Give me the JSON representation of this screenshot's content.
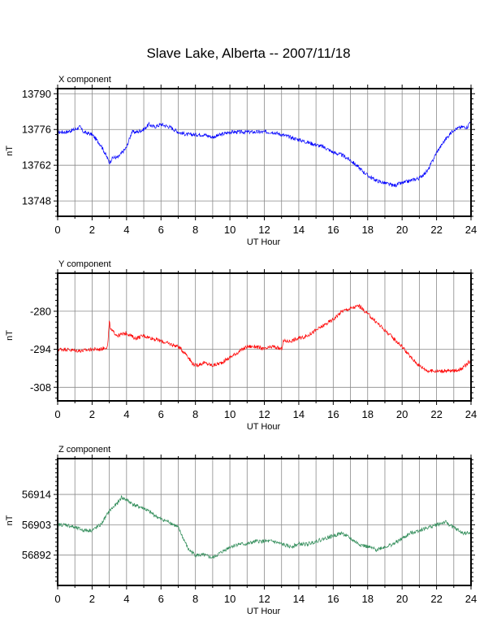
{
  "page": {
    "title": "Slave Lake, Alberta -- 2007/11/18"
  },
  "chart_data": [
    {
      "type": "line",
      "title": "X component",
      "xlabel": "UT Hour",
      "ylabel": "nT",
      "color": "#0000ff",
      "grid": true,
      "xlim": [
        0,
        24
      ],
      "ylim": [
        13742,
        13792
      ],
      "xticks": [
        0,
        2,
        4,
        6,
        8,
        10,
        12,
        14,
        16,
        18,
        20,
        22,
        24
      ],
      "yticks": [
        13748,
        13762,
        13776,
        13790
      ],
      "x": [
        0,
        0.5,
        1,
        1.3,
        1.5,
        2,
        2.5,
        2.8,
        3,
        3.2,
        3.5,
        4,
        4.3,
        4.6,
        5,
        5.3,
        5.6,
        6,
        6.5,
        7,
        7.5,
        8,
        8.5,
        9,
        9.5,
        10,
        10.5,
        11,
        11.5,
        12,
        12.5,
        13,
        13.5,
        14,
        14.5,
        15,
        15.5,
        16,
        16.5,
        17,
        17.5,
        18,
        18.5,
        19,
        19.5,
        20,
        20.5,
        21,
        21.5,
        22,
        22.5,
        23,
        23.5,
        23.8,
        24
      ],
      "y": [
        13775,
        13775,
        13776,
        13777,
        13775,
        13774,
        13770,
        13766,
        13763,
        13765,
        13765,
        13769,
        13775,
        13775,
        13776,
        13778,
        13777,
        13778,
        13777,
        13775,
        13774,
        13774,
        13774,
        13773,
        13774,
        13775,
        13775,
        13775,
        13775,
        13775,
        13775,
        13774,
        13773,
        13772,
        13771,
        13770,
        13769,
        13767,
        13766,
        13764,
        13761,
        13758,
        13756,
        13755,
        13754,
        13755,
        13756,
        13757,
        13760,
        13767,
        13772,
        13776,
        13777,
        13777,
        13780
      ]
    },
    {
      "type": "line",
      "title": "Y component",
      "xlabel": "UT Hour",
      "ylabel": "nT",
      "color": "#ff0000",
      "grid": true,
      "xlim": [
        0,
        24
      ],
      "ylim": [
        -313,
        -266
      ],
      "xticks": [
        0,
        2,
        4,
        6,
        8,
        10,
        12,
        14,
        16,
        18,
        20,
        22,
        24
      ],
      "yticks": [
        -280,
        -294,
        -308
      ],
      "x": [
        0,
        0.5,
        1,
        1.5,
        2,
        2.5,
        2.9,
        3,
        3.1,
        3.5,
        4,
        4.5,
        5,
        5.5,
        6,
        6.5,
        7,
        7.5,
        7.8,
        8,
        8.5,
        9,
        9.5,
        10,
        10.5,
        11,
        11.5,
        12,
        12.5,
        13,
        13.1,
        13.5,
        14,
        14.5,
        15,
        15.5,
        16,
        16.5,
        17,
        17.5,
        18,
        18.5,
        19,
        19.5,
        20,
        20.5,
        21,
        21.5,
        22,
        22.5,
        23,
        23.5,
        24
      ],
      "y": [
        -294,
        -294,
        -294.5,
        -294.5,
        -294,
        -294,
        -293,
        -284,
        -287,
        -289,
        -288,
        -290,
        -289,
        -290,
        -291,
        -292,
        -293,
        -296,
        -299,
        -300,
        -299,
        -300,
        -299,
        -297,
        -295,
        -293,
        -293,
        -294,
        -293,
        -294,
        -291,
        -291,
        -290,
        -289,
        -287,
        -285,
        -283,
        -280,
        -279,
        -278,
        -281,
        -284,
        -287,
        -290,
        -293,
        -297,
        -300,
        -302,
        -302,
        -302,
        -302,
        -301,
        -298
      ]
    },
    {
      "type": "line",
      "title": "Z component",
      "xlabel": "UT Hour",
      "ylabel": "nT",
      "color": "#2e8b57",
      "grid": true,
      "xlim": [
        0,
        24
      ],
      "ylim": [
        56881,
        56927
      ],
      "xticks": [
        0,
        2,
        4,
        6,
        8,
        10,
        12,
        14,
        16,
        18,
        20,
        22,
        24
      ],
      "yticks": [
        56892,
        56903,
        56914
      ],
      "x": [
        0,
        0.5,
        1,
        1.5,
        2,
        2.5,
        3,
        3.5,
        3.7,
        4,
        4.5,
        5,
        5.5,
        6,
        6.5,
        7,
        7.3,
        7.6,
        8,
        8.5,
        9,
        9.5,
        10,
        10.5,
        11,
        11.5,
        12,
        12.5,
        13,
        13.5,
        14,
        14.5,
        15,
        15.5,
        16,
        16.5,
        17,
        17.5,
        18,
        18.5,
        19,
        19.5,
        20,
        20.5,
        21,
        21.5,
        22,
        22.5,
        23,
        23.5,
        24
      ],
      "y": [
        56903,
        56903,
        56902,
        56901,
        56901,
        56903,
        56908,
        56911,
        56913,
        56912,
        56910,
        56909,
        56907,
        56905,
        56904,
        56902,
        56898,
        56894,
        56892,
        56892,
        56891,
        56893,
        56895,
        56896,
        56896,
        56897,
        56897,
        56897,
        56896,
        56895,
        56896,
        56896,
        56897,
        56898,
        56899,
        56900,
        56898,
        56896,
        56895,
        56894,
        56895,
        56896,
        56898,
        56900,
        56901,
        56902,
        56903,
        56904,
        56902,
        56900,
        56900
      ]
    }
  ]
}
